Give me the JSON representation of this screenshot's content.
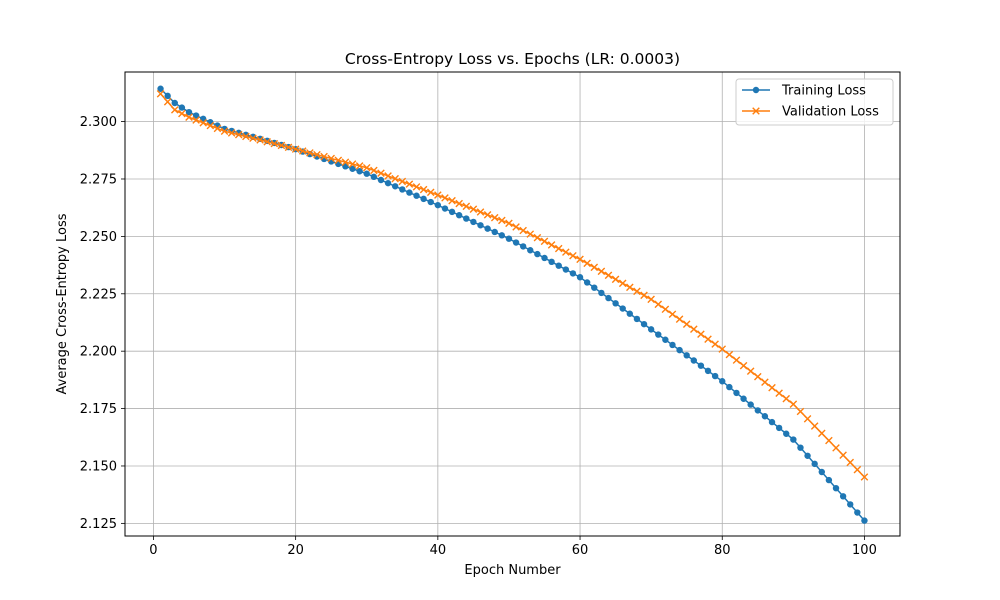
{
  "chart_data": {
    "type": "line",
    "title": "Cross-Entropy Loss vs. Epochs (LR: 0.0003)",
    "xlabel": "Epoch Number",
    "ylabel": "Average Cross-Entropy Loss",
    "xlim": [
      -4,
      105
    ],
    "ylim": [
      2.1195,
      2.3216
    ],
    "xticks": [
      0,
      20,
      40,
      60,
      80,
      100
    ],
    "xtick_labels": [
      "0",
      "20",
      "40",
      "60",
      "80",
      "100"
    ],
    "yticks": [
      2.125,
      2.15,
      2.175,
      2.2,
      2.225,
      2.25,
      2.275,
      2.3
    ],
    "ytick_labels": [
      "2.125",
      "2.150",
      "2.175",
      "2.200",
      "2.225",
      "2.250",
      "2.275",
      "2.300"
    ],
    "grid": true,
    "legend_position": "top-right",
    "series": [
      {
        "name": "Training Loss",
        "color": "#1f77b4",
        "marker": "circle",
        "x_start": 1,
        "x_end": 100,
        "anchor_x": [
          1,
          3,
          5,
          10,
          15,
          20,
          30,
          40,
          50,
          60,
          70,
          80,
          90,
          100
        ],
        "anchor_y": [
          2.3143,
          2.3081,
          2.3041,
          2.2968,
          2.2925,
          2.288,
          2.2773,
          2.2636,
          2.249,
          2.2322,
          2.2095,
          2.1869,
          2.1615,
          2.1262
        ]
      },
      {
        "name": "Validation Loss",
        "color": "#ff7f0e",
        "marker": "x",
        "x_start": 1,
        "x_end": 100,
        "anchor_x": [
          1,
          3,
          5,
          10,
          15,
          20,
          30,
          40,
          50,
          60,
          70,
          80,
          90,
          100
        ],
        "anchor_y": [
          2.3121,
          2.3051,
          2.3019,
          2.2958,
          2.292,
          2.288,
          2.2799,
          2.268,
          2.2557,
          2.24,
          2.2226,
          2.2009,
          2.1769,
          2.1452
        ]
      }
    ]
  }
}
